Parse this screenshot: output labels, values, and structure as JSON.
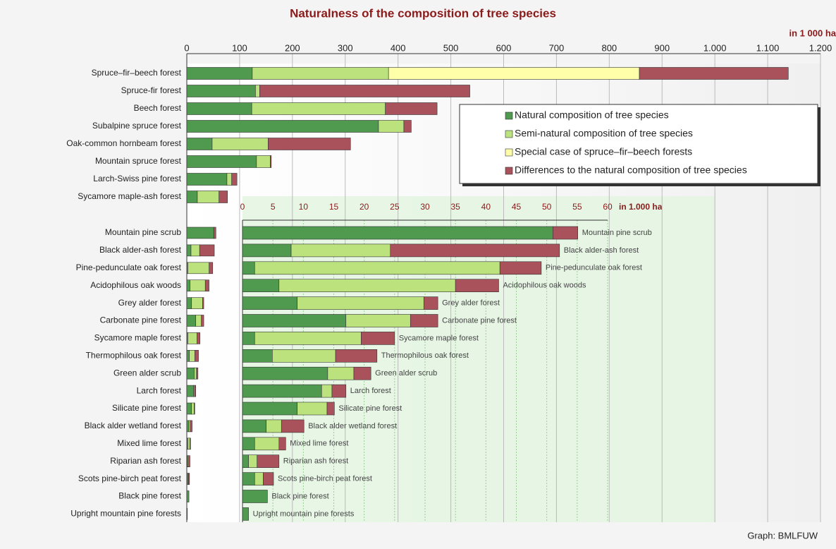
{
  "chart_data": [
    {
      "type": "stacked-bar",
      "title": "Naturalness of the composition of tree species",
      "x_label": "in 1 000 ha",
      "source": "Graph: BMLFUW",
      "categories": [
        "Spruce–fir–beech forest",
        "Spruce-fir forest",
        "Beech forest",
        "Subalpine spruce forest",
        "Oak-common hornbeam forest",
        "Mountain spruce forest",
        "Larch-Swiss pine forest",
        "Sycamore maple-ash forest",
        "Mountain pine scrub",
        "Black alder-ash forest",
        "Pine-pedunculate oak forest",
        "Acidophilous oak woods",
        "Grey alder forest",
        "Carbonate pine forest",
        "Sycamore maple forest",
        "Thermophilous oak forest",
        "Green alder scrub",
        "Larch forest",
        "Silicate pine forest",
        "Black alder wetland forest",
        "Mixed lime forest",
        "Riparian ash forest",
        "Scots pine-birch peat forest",
        "Black pine forest",
        "Upright mountain pine forests"
      ],
      "series": [
        {
          "name": "Natural composition of tree species",
          "color": "#4f9a4f",
          "values": [
            124,
            130,
            123,
            363,
            48,
            132,
            76,
            20,
            51,
            8,
            2,
            6,
            9,
            17,
            2,
            4.9,
            14,
            13,
            9,
            3.9,
            2,
            1,
            2,
            4.1,
            1
          ]
        },
        {
          "name": "Semi-natural composition of tree species",
          "color": "#bce27e",
          "values": [
            258,
            8,
            253,
            48,
            106,
            26,
            9,
            41,
            null,
            16.3,
            40.3,
            29,
            20.8,
            10.6,
            17.5,
            10.4,
            4.3,
            1.7,
            4.9,
            2.5,
            4,
            1.4,
            1.4,
            null,
            null
          ]
        },
        {
          "name": "Special case of spruce–fir–beech forests",
          "color": "#ffffaa",
          "values": [
            475,
            null,
            null,
            null,
            null,
            null,
            null,
            null,
            null,
            null,
            null,
            null,
            null,
            null,
            null,
            null,
            null,
            null,
            null,
            null,
            null,
            null,
            null,
            null,
            null
          ]
        },
        {
          "name": "Differences to the natural composition of tree species",
          "color": "#a9525c",
          "values": [
            282,
            398,
            98,
            14,
            156,
            2,
            10,
            16,
            4.1,
            27.8,
            6.8,
            7.1,
            2.3,
            4.5,
            5.5,
            6.8,
            2.8,
            2.3,
            1.2,
            3.7,
            1.1,
            3.6,
            1.7,
            null,
            null
          ]
        }
      ],
      "xlim": [
        0,
        1200
      ],
      "xticks": [
        0,
        100,
        200,
        300,
        400,
        500,
        600,
        700,
        800,
        900,
        {
          "value": 1000,
          "label": "1.000"
        },
        {
          "value": 1100,
          "label": "1.100"
        },
        {
          "value": 1200,
          "label": "1.200"
        }
      ],
      "grid": true
    },
    {
      "type": "stacked-bar",
      "x_label": "in 1.000 ha",
      "categories": [
        "Mountain pine scrub",
        "Black alder-ash forest",
        "Pine-pedunculate oak forest",
        "Acidophilous oak woods",
        "Grey alder forest",
        "Carbonate pine forest",
        "Sycamore maple forest",
        "Thermophilous oak forest",
        "Green alder scrub",
        "Larch forest",
        "Silicate pine forest",
        "Black alder wetland forest",
        "Mixed lime forest",
        "Riparian ash forest",
        "Scots pine-birch peat forest",
        "Black pine forest",
        "Upright mountain pine forests"
      ],
      "series": [
        {
          "color": "#4f9a4f",
          "values": [
            51,
            8,
            2,
            6,
            9,
            17,
            2,
            4.9,
            14,
            13,
            9,
            3.9,
            2,
            1,
            2,
            4.1,
            1
          ]
        },
        {
          "color": "#bce27e",
          "values": [
            null,
            16.3,
            40.3,
            29,
            20.8,
            10.6,
            17.5,
            10.4,
            4.3,
            1.7,
            4.9,
            2.5,
            4,
            1.4,
            1.4,
            null,
            null
          ]
        },
        {
          "color": "#a9525c",
          "values": [
            4.1,
            27.8,
            6.8,
            7.1,
            2.3,
            4.5,
            5.5,
            6.8,
            2.8,
            2.3,
            1.2,
            3.7,
            1.1,
            3.6,
            1.7,
            null,
            null
          ]
        }
      ],
      "xlim": [
        0,
        60
      ],
      "xticks": [
        0,
        5,
        10,
        15,
        20,
        25,
        30,
        35,
        40,
        45,
        50,
        55,
        60
      ],
      "grid": true
    }
  ]
}
